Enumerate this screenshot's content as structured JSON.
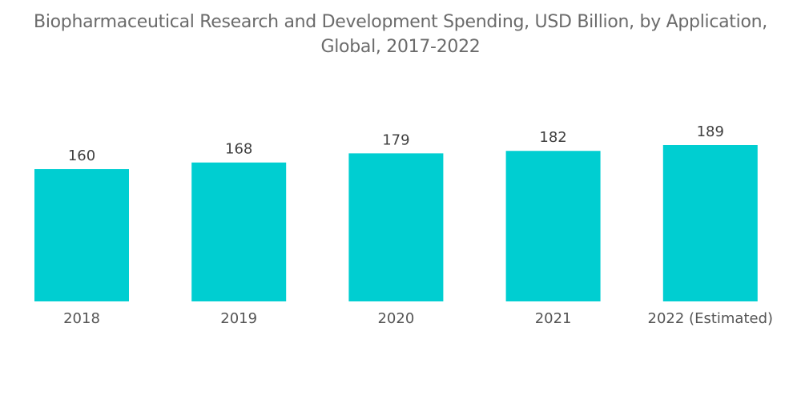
{
  "chart_data": {
    "type": "bar",
    "title_lines": [
      "Biopharmaceutical Research and Development Spending, USD Billion, by Application,",
      "Global, 2017-2022"
    ],
    "title": "Biopharmaceutical Research and Development Spending, USD Billion, by Application, Global, 2017-2022",
    "categories": [
      "2018",
      "2019",
      "2020",
      "2021",
      "2022 (Estimated)"
    ],
    "values": [
      160,
      168,
      179,
      182,
      189
    ],
    "data_labels": [
      "160",
      "168",
      "179",
      "182",
      "189"
    ],
    "xlabel": "",
    "ylabel": "",
    "grid": false,
    "legend": "none",
    "bar_color": "#00ced1",
    "y_axis_visible": false
  }
}
